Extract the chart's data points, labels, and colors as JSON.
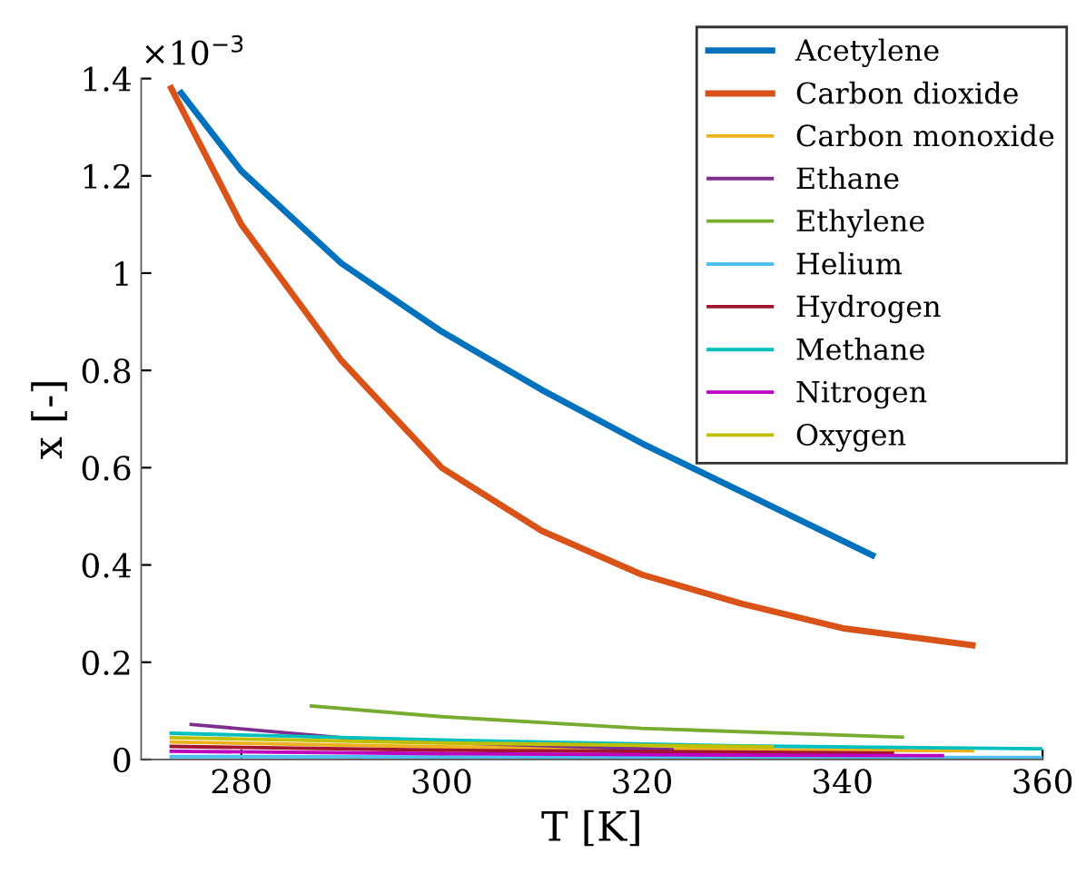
{
  "chart_data": {
    "type": "line",
    "xlabel": "T [K]",
    "ylabel": "x [-]",
    "annotations": [
      "×10$^{−3}$"
    ],
    "xlim": [
      270,
      360
    ],
    "xticks": [
      280,
      300,
      320,
      340,
      360
    ],
    "ylim": [
      0,
      1.4
    ],
    "yticks": [
      0,
      0.2,
      0.4,
      0.6,
      0.8,
      1,
      1.2,
      1.4
    ],
    "legend": "top right",
    "grid": false,
    "marker": "none",
    "line_style": "solid",
    "series": [
      {
        "name": "Acetylene",
        "color": "#0072bd",
        "x": [
          274,
          280,
          290,
          300,
          310,
          320,
          330,
          343
        ],
        "values": [
          1.37,
          1.21,
          1.02,
          0.88,
          0.76,
          0.65,
          0.55,
          0.42
        ]
      },
      {
        "name": "Carbon dioxide",
        "color": "#d95319",
        "x": [
          273,
          280,
          290,
          300,
          310,
          320,
          330,
          340,
          353
        ],
        "values": [
          1.38,
          1.1,
          0.82,
          0.6,
          0.47,
          0.38,
          0.32,
          0.27,
          0.235
        ]
      },
      {
        "name": "Carbon monoxide",
        "color": "#edb120",
        "x": [
          273,
          300,
          330,
          353
        ],
        "values": [
          0.036,
          0.026,
          0.02,
          0.018
        ]
      },
      {
        "name": "Ethane",
        "color": "#7e2f8e",
        "x": [
          275,
          290,
          300,
          323
        ],
        "values": [
          0.072,
          0.045,
          0.035,
          0.02
        ]
      },
      {
        "name": "Ethylene",
        "color": "#77ac30",
        "x": [
          287,
          300,
          320,
          346
        ],
        "values": [
          0.11,
          0.088,
          0.064,
          0.046
        ]
      },
      {
        "name": "Helium",
        "color": "#4dbeee",
        "x": [
          273,
          360
        ],
        "values": [
          0.006,
          0.004
        ]
      },
      {
        "name": "Hydrogen",
        "color": "#a2142f",
        "x": [
          273,
          300,
          345
        ],
        "values": [
          0.027,
          0.019,
          0.013
        ]
      },
      {
        "name": "Methane",
        "color": "#00bfbf",
        "x": [
          273,
          300,
          330,
          360
        ],
        "values": [
          0.054,
          0.04,
          0.028,
          0.022
        ]
      },
      {
        "name": "Nitrogen",
        "color": "#bf00bf",
        "x": [
          273,
          300,
          330,
          350
        ],
        "values": [
          0.017,
          0.012,
          0.009,
          0.008
        ]
      },
      {
        "name": "Oxygen",
        "color": "#bfbf00",
        "x": [
          273,
          300,
          333
        ],
        "values": [
          0.045,
          0.034,
          0.026
        ]
      }
    ]
  }
}
